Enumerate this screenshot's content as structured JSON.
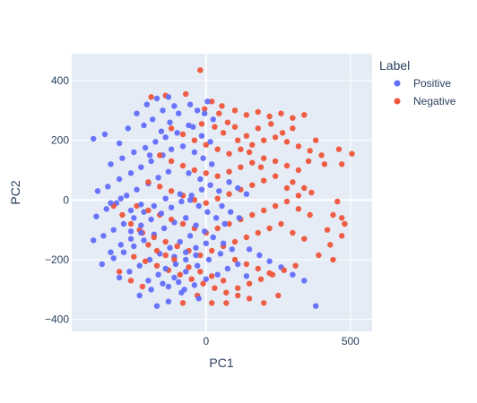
{
  "chart_data": {
    "type": "scatter",
    "xlabel": "PC1",
    "ylabel": "PC2",
    "xlim": [
      -465,
      575
    ],
    "ylim": [
      -440,
      490
    ],
    "x_ticks": [
      0,
      500
    ],
    "y_ticks": [
      -400,
      -200,
      0,
      200,
      400
    ],
    "x_tick_labels": [
      "0",
      "500"
    ],
    "y_tick_labels": [
      "−400",
      "−200",
      "0",
      "200",
      "400"
    ],
    "grid": true,
    "plot_background": "#e5ecf6",
    "legend": {
      "title": "Label",
      "position": "top-right",
      "entries": [
        "Positive",
        "Negative"
      ]
    },
    "series": [
      {
        "name": "Positive",
        "color": "#636efa",
        "points": [
          [
            -390,
            205
          ],
          [
            -350,
            220
          ],
          [
            -300,
            190
          ],
          [
            -270,
            240
          ],
          [
            -240,
            290
          ],
          [
            -205,
            320
          ],
          [
            -170,
            340
          ],
          [
            -130,
            345
          ],
          [
            -330,
            120
          ],
          [
            -290,
            140
          ],
          [
            -250,
            160
          ],
          [
            -210,
            175
          ],
          [
            -175,
            195
          ],
          [
            -140,
            210
          ],
          [
            -100,
            225
          ],
          [
            -60,
            250
          ],
          [
            -375,
            30
          ],
          [
            -340,
            45
          ],
          [
            -300,
            70
          ],
          [
            -260,
            90
          ],
          [
            -225,
            110
          ],
          [
            -190,
            130
          ],
          [
            -150,
            150
          ],
          [
            -120,
            170
          ],
          [
            -380,
            -55
          ],
          [
            -345,
            -30
          ],
          [
            -310,
            -10
          ],
          [
            -275,
            15
          ],
          [
            -240,
            35
          ],
          [
            -200,
            55
          ],
          [
            -165,
            75
          ],
          [
            -130,
            95
          ],
          [
            -390,
            -135
          ],
          [
            -355,
            -120
          ],
          [
            -320,
            -100
          ],
          [
            -285,
            -80
          ],
          [
            -250,
            -60
          ],
          [
            -215,
            -40
          ],
          [
            -180,
            -20
          ],
          [
            -140,
            5
          ],
          [
            -360,
            -215
          ],
          [
            -320,
            -195
          ],
          [
            -285,
            -175
          ],
          [
            -250,
            -155
          ],
          [
            -215,
            -135
          ],
          [
            -180,
            -115
          ],
          [
            -145,
            -95
          ],
          [
            -110,
            -75
          ],
          [
            -300,
            -260
          ],
          [
            -265,
            -240
          ],
          [
            -230,
            -220
          ],
          [
            -195,
            -200
          ],
          [
            -160,
            -180
          ],
          [
            -125,
            -160
          ],
          [
            -90,
            -140
          ],
          [
            -55,
            -120
          ],
          [
            -230,
            -320
          ],
          [
            -190,
            -300
          ],
          [
            -150,
            -280
          ],
          [
            -110,
            -260
          ],
          [
            -70,
            -240
          ],
          [
            -30,
            -220
          ],
          [
            10,
            -200
          ],
          [
            50,
            -180
          ],
          [
            -170,
            -355
          ],
          [
            -130,
            -340
          ],
          [
            -85,
            -310
          ],
          [
            -40,
            -285
          ],
          [
            0,
            -265
          ],
          [
            40,
            -250
          ],
          [
            75,
            -230
          ],
          [
            110,
            -215
          ],
          [
            -80,
            180
          ],
          [
            -40,
            160
          ],
          [
            -10,
            140
          ],
          [
            20,
            120
          ],
          [
            -60,
            90
          ],
          [
            -20,
            70
          ],
          [
            15,
            50
          ],
          [
            45,
            30
          ],
          [
            -90,
            20
          ],
          [
            -55,
            0
          ],
          [
            -25,
            -20
          ],
          [
            5,
            -40
          ],
          [
            35,
            -60
          ],
          [
            65,
            -80
          ],
          [
            -70,
            -60
          ],
          [
            -35,
            -85
          ],
          [
            -5,
            -105
          ],
          [
            25,
            -125
          ],
          [
            60,
            -145
          ],
          [
            90,
            -165
          ],
          [
            -110,
            -190
          ],
          [
            -70,
            -175
          ],
          [
            -35,
            -160
          ],
          [
            0,
            -145
          ],
          [
            -5,
            290
          ],
          [
            25,
            270
          ],
          [
            -30,
            300
          ],
          [
            5,
            330
          ],
          [
            -55,
            320
          ],
          [
            -15,
            215
          ],
          [
            15,
            195
          ],
          [
            -45,
            245
          ],
          [
            150,
            -165
          ],
          [
            185,
            -185
          ],
          [
            220,
            -205
          ],
          [
            260,
            -225
          ],
          [
            300,
            -250
          ],
          [
            340,
            -270
          ],
          [
            380,
            -355
          ],
          [
            140,
            -255
          ],
          [
            -215,
            250
          ],
          [
            -185,
            270
          ],
          [
            -155,
            230
          ],
          [
            -125,
            260
          ],
          [
            -95,
            290
          ],
          [
            -150,
            300
          ],
          [
            -110,
            315
          ],
          [
            -195,
            150
          ],
          [
            -260,
            -105
          ],
          [
            -225,
            -85
          ],
          [
            -190,
            -65
          ],
          [
            -155,
            -45
          ],
          [
            -120,
            -25
          ],
          [
            -85,
            -5
          ],
          [
            -50,
            15
          ],
          [
            -15,
            35
          ],
          [
            -330,
            -175
          ],
          [
            -295,
            -150
          ],
          [
            -260,
            -130
          ],
          [
            -225,
            -110
          ],
          [
            -330,
            -10
          ],
          [
            -295,
            5
          ],
          [
            -260,
            -35
          ],
          [
            -225,
            -15
          ],
          [
            -140,
            -230
          ],
          [
            -105,
            -215
          ],
          [
            -70,
            -200
          ],
          [
            -35,
            -185
          ],
          [
            -200,
            -270
          ],
          [
            -165,
            -250
          ],
          [
            -130,
            -290
          ],
          [
            -95,
            -275
          ],
          [
            55,
            -20
          ],
          [
            85,
            -40
          ],
          [
            115,
            -60
          ],
          [
            80,
            60
          ],
          [
            110,
            40
          ],
          [
            140,
            20
          ],
          [
            -75,
            -300
          ],
          [
            -25,
            -330
          ]
        ]
      },
      {
        "name": "Negative",
        "color": "#ef553b",
        "points": [
          [
            -20,
            435
          ],
          [
            -70,
            355
          ],
          [
            -140,
            350
          ],
          [
            -190,
            345
          ],
          [
            20,
            330
          ],
          [
            55,
            315
          ],
          [
            -5,
            305
          ],
          [
            45,
            290
          ],
          [
            100,
            300
          ],
          [
            140,
            285
          ],
          [
            180,
            295
          ],
          [
            220,
            280
          ],
          [
            260,
            290
          ],
          [
            300,
            275
          ],
          [
            340,
            285
          ],
          [
            380,
            200
          ],
          [
            -120,
            240
          ],
          [
            -80,
            220
          ],
          [
            -40,
            200
          ],
          [
            0,
            185
          ],
          [
            40,
            170
          ],
          [
            80,
            155
          ],
          [
            120,
            170
          ],
          [
            160,
            185
          ],
          [
            200,
            200
          ],
          [
            240,
            210
          ],
          [
            280,
            195
          ],
          [
            320,
            180
          ],
          [
            360,
            165
          ],
          [
            400,
            150
          ],
          [
            460,
            170
          ],
          [
            505,
            155
          ],
          [
            -160,
            150
          ],
          [
            -120,
            130
          ],
          [
            -80,
            115
          ],
          [
            -40,
            100
          ],
          [
            0,
            90
          ],
          [
            40,
            80
          ],
          [
            80,
            95
          ],
          [
            120,
            110
          ],
          [
            160,
            125
          ],
          [
            200,
            140
          ],
          [
            240,
            130
          ],
          [
            280,
            115
          ],
          [
            320,
            100
          ],
          [
            355,
            130
          ],
          [
            300,
            60
          ],
          [
            340,
            40
          ],
          [
            -200,
            60
          ],
          [
            -160,
            45
          ],
          [
            -120,
            30
          ],
          [
            -80,
            15
          ],
          [
            -40,
            0
          ],
          [
            0,
            -10
          ],
          [
            40,
            5
          ],
          [
            80,
            20
          ],
          [
            120,
            35
          ],
          [
            160,
            50
          ],
          [
            200,
            65
          ],
          [
            240,
            80
          ],
          [
            280,
            40
          ],
          [
            320,
            15
          ],
          [
            365,
            25
          ],
          [
            455,
            -5
          ],
          [
            -240,
            -20
          ],
          [
            -200,
            -35
          ],
          [
            -160,
            -50
          ],
          [
            -120,
            -65
          ],
          [
            -80,
            -80
          ],
          [
            -40,
            -95
          ],
          [
            0,
            -110
          ],
          [
            40,
            -95
          ],
          [
            80,
            -80
          ],
          [
            120,
            -65
          ],
          [
            160,
            -50
          ],
          [
            200,
            -35
          ],
          [
            240,
            -20
          ],
          [
            280,
            -5
          ],
          [
            320,
            -30
          ],
          [
            360,
            -50
          ],
          [
            -220,
            -110
          ],
          [
            -180,
            -125
          ],
          [
            -140,
            -140
          ],
          [
            -100,
            -155
          ],
          [
            -60,
            -170
          ],
          [
            -20,
            -185
          ],
          [
            20,
            -170
          ],
          [
            60,
            -155
          ],
          [
            100,
            -140
          ],
          [
            140,
            -125
          ],
          [
            180,
            -110
          ],
          [
            220,
            -95
          ],
          [
            260,
            -80
          ],
          [
            300,
            -110
          ],
          [
            340,
            -130
          ],
          [
            470,
            -60
          ],
          [
            -250,
            -190
          ],
          [
            -210,
            -205
          ],
          [
            -170,
            -220
          ],
          [
            -130,
            -235
          ],
          [
            -90,
            -250
          ],
          [
            -50,
            -265
          ],
          [
            -10,
            -280
          ],
          [
            30,
            -295
          ],
          [
            70,
            -310
          ],
          [
            110,
            -295
          ],
          [
            150,
            -280
          ],
          [
            190,
            -265
          ],
          [
            230,
            -250
          ],
          [
            270,
            -235
          ],
          [
            310,
            -220
          ],
          [
            440,
            -200
          ],
          [
            -320,
            -20
          ],
          [
            -290,
            -50
          ],
          [
            -260,
            -80
          ],
          [
            -230,
            -100
          ],
          [
            -200,
            -150
          ],
          [
            -170,
            -170
          ],
          [
            -140,
            -185
          ],
          [
            -110,
            -200
          ],
          [
            -60,
            -225
          ],
          [
            -20,
            -240
          ],
          [
            20,
            -255
          ],
          [
            60,
            -270
          ],
          [
            100,
            -200
          ],
          [
            140,
            -215
          ],
          [
            180,
            -230
          ],
          [
            220,
            -245
          ],
          [
            70,
            -345
          ],
          [
            110,
            -320
          ],
          [
            20,
            -345
          ],
          [
            -30,
            -320
          ],
          [
            -80,
            -345
          ],
          [
            150,
            -330
          ],
          [
            200,
            -345
          ],
          [
            250,
            -320
          ],
          [
            390,
            -185
          ],
          [
            430,
            -150
          ],
          [
            470,
            -120
          ],
          [
            420,
            -100
          ],
          [
            440,
            -50
          ],
          [
            480,
            -80
          ],
          [
            410,
            120
          ],
          [
            470,
            120
          ],
          [
            -300,
            -240
          ],
          [
            -260,
            -270
          ],
          [
            -220,
            -290
          ],
          [
            60,
            225
          ],
          [
            100,
            245
          ],
          [
            140,
            215
          ],
          [
            180,
            240
          ],
          [
            225,
            255
          ],
          [
            265,
            225
          ],
          [
            300,
            240
          ],
          [
            -15,
            255
          ],
          [
            30,
            245
          ],
          [
            75,
            260
          ],
          [
            110,
            200
          ],
          [
            150,
            160
          ],
          [
            190,
            110
          ]
        ]
      }
    ]
  }
}
